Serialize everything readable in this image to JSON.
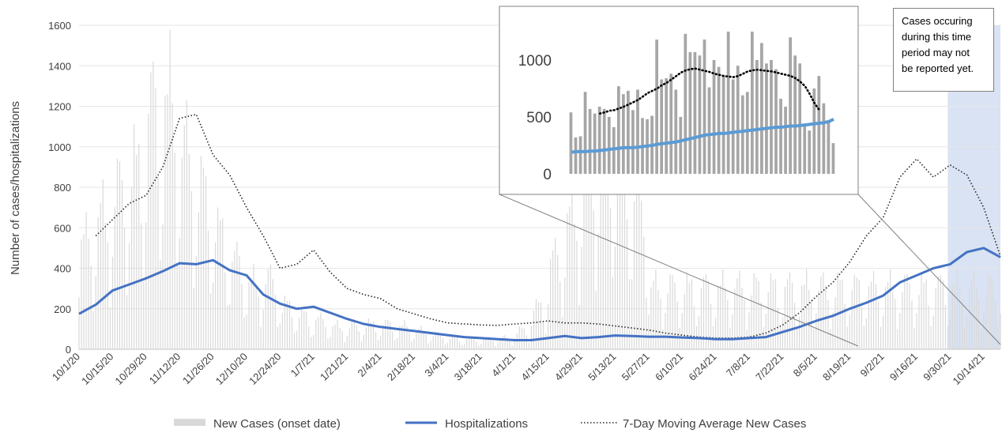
{
  "chart_data": [
    {
      "type": "bar+line",
      "title": "",
      "ylabel": "Number of cases/hospitalizations",
      "xlabel": "",
      "ylim": [
        0,
        1600
      ],
      "yticks": [
        0,
        200,
        400,
        600,
        800,
        1000,
        1200,
        1400,
        1600
      ],
      "x_tick_labels": [
        "10/1/20",
        "10/15/20",
        "10/29/20",
        "11/12/20",
        "11/26/20",
        "12/10/20",
        "12/24/20",
        "1/7/21",
        "1/21/21",
        "2/4/21",
        "2/18/21",
        "3/4/21",
        "3/18/21",
        "4/1/21",
        "4/15/21",
        "4/29/21",
        "5/13/21",
        "5/27/21",
        "6/10/21",
        "6/24/21",
        "7/8/21",
        "7/22/21",
        "8/5/21",
        "8/19/21",
        "9/2/21",
        "9/16/21",
        "9/30/21",
        "10/14/21"
      ],
      "grid": "horizontal",
      "legend_position": "bottom",
      "series": [
        {
          "name": "New Cases (onset date)",
          "kind": "bar",
          "color": "#d9d9d9",
          "weekly_typical": [
            520,
            640,
            760,
            880,
            1150,
            1200,
            950,
            760,
            560,
            420,
            320,
            330,
            210,
            160,
            140,
            110,
            110,
            120,
            120,
            110,
            90,
            70,
            55,
            50,
            48,
            55,
            90,
            200,
            430,
            650,
            850,
            950,
            900,
            700,
            300
          ]
        },
        {
          "name": "Hospitalizations",
          "kind": "line",
          "color": "#4472c4",
          "points": [
            [
              "10/1/20",
              175
            ],
            [
              "10/8/20",
              220
            ],
            [
              "10/15/20",
              290
            ],
            [
              "10/22/20",
              320
            ],
            [
              "10/29/20",
              350
            ],
            [
              "11/5/20",
              385
            ],
            [
              "11/12/20",
              425
            ],
            [
              "11/19/20",
              420
            ],
            [
              "11/26/20",
              440
            ],
            [
              "12/3/20",
              390
            ],
            [
              "12/10/20",
              365
            ],
            [
              "12/17/20",
              270
            ],
            [
              "12/24/20",
              225
            ],
            [
              "12/31/20",
              200
            ],
            [
              "1/7/21",
              210
            ],
            [
              "1/14/21",
              180
            ],
            [
              "1/21/21",
              150
            ],
            [
              "1/28/21",
              125
            ],
            [
              "2/4/21",
              110
            ],
            [
              "2/11/21",
              100
            ],
            [
              "2/18/21",
              90
            ],
            [
              "2/25/21",
              80
            ],
            [
              "3/4/21",
              70
            ],
            [
              "3/11/21",
              60
            ],
            [
              "3/18/21",
              55
            ],
            [
              "3/25/21",
              50
            ],
            [
              "4/1/21",
              45
            ],
            [
              "4/8/21",
              45
            ],
            [
              "4/15/21",
              55
            ],
            [
              "4/22/21",
              65
            ],
            [
              "4/29/21",
              55
            ],
            [
              "5/6/21",
              60
            ],
            [
              "5/13/21",
              68
            ],
            [
              "5/20/21",
              65
            ],
            [
              "5/27/21",
              62
            ],
            [
              "6/3/21",
              62
            ],
            [
              "6/10/21",
              58
            ],
            [
              "6/17/21",
              55
            ],
            [
              "6/24/21",
              50
            ],
            [
              "7/1/21",
              50
            ],
            [
              "7/8/21",
              55
            ],
            [
              "7/15/21",
              60
            ],
            [
              "7/22/21",
              85
            ],
            [
              "7/29/21",
              110
            ],
            [
              "8/5/21",
              140
            ],
            [
              "8/12/21",
              165
            ],
            [
              "8/19/21",
              200
            ],
            [
              "8/26/21",
              230
            ],
            [
              "9/2/21",
              265
            ],
            [
              "9/9/21",
              330
            ],
            [
              "9/16/21",
              365
            ],
            [
              "9/23/21",
              400
            ],
            [
              "9/30/21",
              420
            ],
            [
              "10/7/21",
              480
            ],
            [
              "10/14/21",
              500
            ],
            [
              "10/21/21",
              455
            ]
          ]
        },
        {
          "name": "7-Day Moving Average New Cases",
          "kind": "line",
          "style": "dotted",
          "color": "#262626",
          "points": [
            [
              "10/8/20",
              560
            ],
            [
              "10/15/20",
              640
            ],
            [
              "10/22/20",
              720
            ],
            [
              "10/29/20",
              760
            ],
            [
              "11/5/20",
              900
            ],
            [
              "11/12/20",
              1140
            ],
            [
              "11/19/20",
              1160
            ],
            [
              "11/26/20",
              960
            ],
            [
              "12/3/20",
              860
            ],
            [
              "12/10/20",
              700
            ],
            [
              "12/17/20",
              560
            ],
            [
              "12/24/20",
              400
            ],
            [
              "12/31/20",
              420
            ],
            [
              "1/7/21",
              490
            ],
            [
              "1/14/21",
              380
            ],
            [
              "1/21/21",
              300
            ],
            [
              "1/28/21",
              270
            ],
            [
              "2/4/21",
              250
            ],
            [
              "2/11/21",
              200
            ],
            [
              "2/18/21",
              175
            ],
            [
              "2/25/21",
              150
            ],
            [
              "3/4/21",
              130
            ],
            [
              "3/11/21",
              125
            ],
            [
              "3/18/21",
              120
            ],
            [
              "3/25/21",
              118
            ],
            [
              "4/1/21",
              125
            ],
            [
              "4/8/21",
              130
            ],
            [
              "4/15/21",
              140
            ],
            [
              "4/22/21",
              130
            ],
            [
              "4/29/21",
              130
            ],
            [
              "5/6/21",
              125
            ],
            [
              "5/13/21",
              115
            ],
            [
              "5/20/21",
              105
            ],
            [
              "5/27/21",
              95
            ],
            [
              "6/3/21",
              80
            ],
            [
              "6/10/21",
              70
            ],
            [
              "6/17/21",
              60
            ],
            [
              "6/24/21",
              55
            ],
            [
              "7/1/21",
              55
            ],
            [
              "7/8/21",
              60
            ],
            [
              "7/15/21",
              80
            ],
            [
              "7/22/21",
              120
            ],
            [
              "7/29/21",
              180
            ],
            [
              "8/5/21",
              260
            ],
            [
              "8/12/21",
              330
            ],
            [
              "8/19/21",
              430
            ],
            [
              "8/26/21",
              560
            ],
            [
              "9/2/21",
              650
            ],
            [
              "9/9/21",
              850
            ],
            [
              "9/16/21",
              940
            ],
            [
              "9/23/21",
              850
            ],
            [
              "9/30/21",
              910
            ],
            [
              "10/7/21",
              860
            ],
            [
              "10/14/21",
              700
            ],
            [
              "10/21/21",
              460
            ]
          ]
        }
      ],
      "shaded_region": {
        "from": "9/29/21",
        "to": "10/21/21",
        "color": "#dae3f3"
      }
    },
    {
      "type": "bar+line",
      "title": "",
      "inset_of": "7/15/21 to 8/14/21",
      "ylim": [
        0,
        1250
      ],
      "yticks": [
        0,
        500,
        1000
      ],
      "series": [
        {
          "name": "New Cases (onset date)",
          "kind": "bar",
          "color": "#a6a6a6",
          "values": [
            540,
            320,
            330,
            720,
            570,
            530,
            590,
            570,
            500,
            410,
            770,
            700,
            730,
            560,
            740,
            490,
            480,
            510,
            1180,
            830,
            840,
            880,
            740,
            500,
            1230,
            1070,
            1070,
            1040,
            1180,
            760,
            1000,
            940,
            860,
            1250,
            830,
            950,
            690,
            720,
            1250,
            1000,
            1150,
            970,
            1000,
            920,
            660,
            590,
            1200,
            1040,
            970,
            420,
            380,
            750,
            860,
            620,
            460,
            270
          ]
        },
        {
          "name": "Hospitalizations",
          "kind": "line",
          "color": "#5b9bd5",
          "values": [
            190,
            195,
            195,
            195,
            200,
            200,
            205,
            210,
            215,
            220,
            225,
            230,
            230,
            230,
            235,
            240,
            245,
            250,
            260,
            265,
            270,
            275,
            280,
            290,
            300,
            310,
            320,
            330,
            340,
            345,
            350,
            355,
            355,
            360,
            365,
            370,
            375,
            380,
            385,
            390,
            395,
            400,
            405,
            410,
            410,
            415,
            420,
            420,
            425,
            430,
            435,
            440,
            445,
            450,
            460,
            480
          ]
        },
        {
          "name": "7-Day Moving Average New Cases",
          "kind": "line",
          "style": "dotted",
          "color": "#000000",
          "values": [
            null,
            null,
            null,
            null,
            null,
            null,
            530,
            540,
            555,
            560,
            575,
            590,
            610,
            630,
            650,
            680,
            710,
            730,
            750,
            780,
            800,
            830,
            860,
            890,
            910,
            920,
            925,
            915,
            905,
            895,
            880,
            870,
            860,
            855,
            850,
            860,
            880,
            900,
            910,
            915,
            910,
            905,
            900,
            890,
            880,
            870,
            860,
            840,
            810,
            770,
            700,
            620,
            560,
            null,
            null,
            null
          ]
        }
      ]
    }
  ],
  "note": {
    "lines": [
      "Cases occuring",
      "during this time",
      "period may not",
      "be reported yet."
    ]
  },
  "legend": {
    "items": [
      {
        "label": "New Cases (onset date)"
      },
      {
        "label": "Hospitalizations"
      },
      {
        "label": "7-Day Moving Average New Cases"
      }
    ]
  }
}
